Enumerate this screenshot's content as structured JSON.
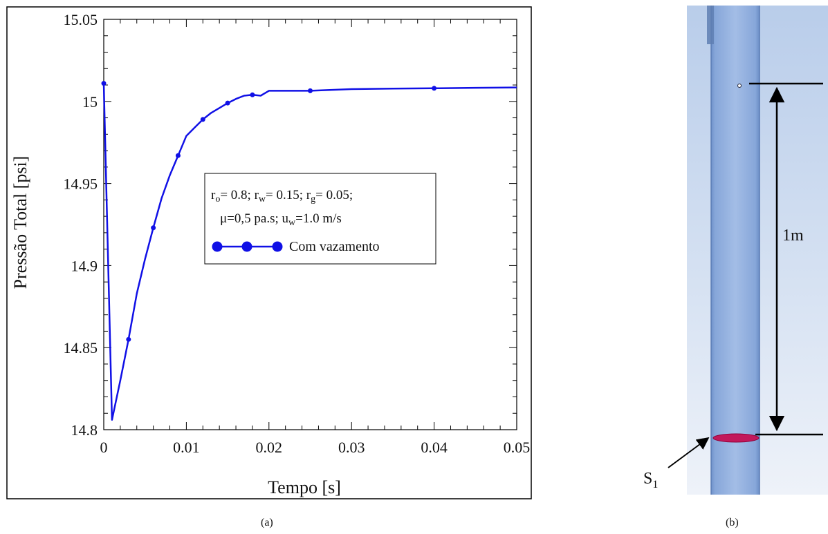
{
  "chart_data": {
    "type": "line",
    "xlabel": "Tempo [s]",
    "ylabel": "Pressão Total [psi]",
    "xlim": [
      0,
      0.05
    ],
    "ylim": [
      14.8,
      15.05
    ],
    "x_ticks": [
      0,
      0.01,
      0.02,
      0.03,
      0.04,
      0.05
    ],
    "x_tick_labels": [
      "0",
      "0.01",
      "0.02",
      "0.03",
      "0.04",
      "0.05"
    ],
    "y_ticks": [
      14.8,
      14.85,
      14.9,
      14.95,
      15.0,
      15.05
    ],
    "y_tick_labels": [
      "14.8",
      "14.85",
      "14.9",
      "14.95",
      "15",
      "15.05"
    ],
    "grid": false,
    "legend_placement": "center-right",
    "legend": {
      "params_line1": "rₒ= 0.8; rw= 0.15; rg= 0.05;",
      "params_line2": "μ=0,5 pa.s; uw=1.0 m/s",
      "series_label": "Com vazamento"
    },
    "series": [
      {
        "name": "Com vazamento",
        "color": "#1010e6",
        "x": [
          0,
          0.001,
          0.002,
          0.003,
          0.004,
          0.005,
          0.006,
          0.007,
          0.008,
          0.009,
          0.01,
          0.011,
          0.012,
          0.013,
          0.014,
          0.015,
          0.016,
          0.017,
          0.018,
          0.019,
          0.02,
          0.025,
          0.03,
          0.035,
          0.04,
          0.045,
          0.05
        ],
        "y": [
          15.011,
          14.806,
          14.83,
          14.855,
          14.883,
          14.904,
          14.923,
          14.941,
          14.955,
          14.967,
          14.979,
          14.984,
          14.989,
          14.993,
          14.996,
          14.999,
          15.0015,
          15.0035,
          15.004,
          15.0035,
          15.0065,
          15.0065,
          15.0075,
          15.0078,
          15.008,
          15.0083,
          15.0085
        ]
      }
    ],
    "markers": {
      "x": [
        0,
        0.003,
        0.006,
        0.009,
        0.012,
        0.015,
        0.018,
        0.025,
        0.04
      ],
      "y": [
        15.011,
        14.855,
        14.923,
        14.967,
        14.989,
        14.999,
        15.004,
        15.0065,
        15.008
      ]
    }
  },
  "diagram": {
    "distance_label": "1m",
    "surface_label": "S",
    "surface_subscript": "1"
  },
  "captions": {
    "a": "(a)",
    "b": "(b)"
  }
}
